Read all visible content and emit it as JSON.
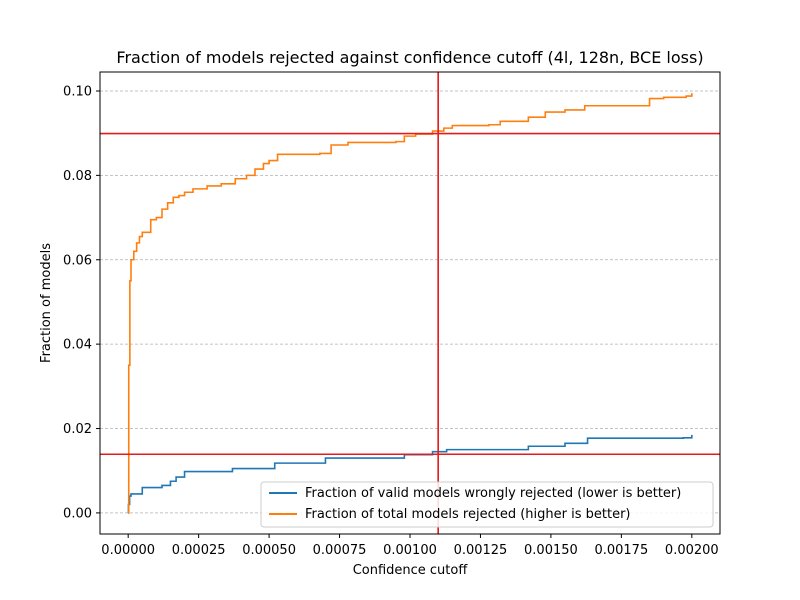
{
  "chart_data": {
    "type": "line",
    "title": "Fraction of models rejected against confidence cutoff (4l, 128n, BCE loss)",
    "xlabel": "Confidence cutoff",
    "ylabel": "Fraction of models",
    "xlim": [
      -0.0001,
      0.0021
    ],
    "ylim": [
      -0.005,
      0.1045
    ],
    "xticks": [
      0.0,
      0.00025,
      0.0005,
      0.00075,
      0.001,
      0.00125,
      0.0015,
      0.00175,
      0.002
    ],
    "xtick_labels": [
      "0.00000",
      "0.00025",
      "0.00050",
      "0.00075",
      "0.00100",
      "0.00125",
      "0.00150",
      "0.00175",
      "0.00200"
    ],
    "yticks": [
      0.0,
      0.02,
      0.04,
      0.06,
      0.08,
      0.1
    ],
    "ytick_labels": [
      "0.00",
      "0.02",
      "0.04",
      "0.06",
      "0.08",
      "0.10"
    ],
    "grid": "y-dashed",
    "legend_position": "lower-right",
    "reference_lines": {
      "color": "#e41a1c",
      "vertical_x": 0.0011,
      "horizontal_y": [
        0.0899,
        0.0139
      ]
    },
    "series": [
      {
        "name": "Fraction of valid models wrongly rejected (lower is better)",
        "color": "#1f77b4",
        "x": [
          0,
          0.0,
          1e-06,
          5e-06,
          1e-05,
          5e-05,
          0.00012,
          0.00015,
          0.00017,
          0.0002,
          0.00037,
          0.00052,
          0.0007,
          0.00098,
          0.00108,
          0.00113,
          0.00142,
          0.00155,
          0.00163,
          0.00175,
          0.00197,
          0.002
        ],
        "y": [
          0,
          0.0,
          0.002,
          0.004,
          0.0045,
          0.006,
          0.0065,
          0.0075,
          0.0085,
          0.0098,
          0.0105,
          0.0118,
          0.013,
          0.0138,
          0.0145,
          0.015,
          0.0158,
          0.0165,
          0.0177,
          0.0177,
          0.0178,
          0.0185
        ]
      },
      {
        "name": "Fraction of total models rejected (higher is better)",
        "color": "#ff7f0e",
        "x": [
          0,
          0.0,
          2e-06,
          6e-06,
          1e-05,
          2e-05,
          3e-05,
          4e-05,
          5e-05,
          8e-05,
          0.0001,
          0.00012,
          0.00014,
          0.00016,
          0.00018,
          0.0002,
          0.00023,
          0.00028,
          0.00033,
          0.00038,
          0.00042,
          0.00045,
          0.00048,
          0.0005,
          0.00053,
          0.00068,
          0.00072,
          0.00078,
          0.00095,
          0.00098,
          0.00102,
          0.00108,
          0.00112,
          0.00115,
          0.00128,
          0.00132,
          0.00142,
          0.00148,
          0.00155,
          0.00162,
          0.00185,
          0.0019,
          0.00198,
          0.002
        ],
        "y": [
          0,
          0.0,
          0.035,
          0.055,
          0.06,
          0.062,
          0.064,
          0.0655,
          0.0665,
          0.0695,
          0.07,
          0.072,
          0.0735,
          0.0748,
          0.0752,
          0.076,
          0.0768,
          0.0775,
          0.078,
          0.0792,
          0.08,
          0.0815,
          0.0828,
          0.0835,
          0.085,
          0.0852,
          0.0872,
          0.0878,
          0.088,
          0.0893,
          0.0898,
          0.0905,
          0.0912,
          0.0918,
          0.092,
          0.0928,
          0.0938,
          0.095,
          0.0955,
          0.0965,
          0.0982,
          0.0985,
          0.0988,
          0.0995
        ]
      }
    ]
  }
}
